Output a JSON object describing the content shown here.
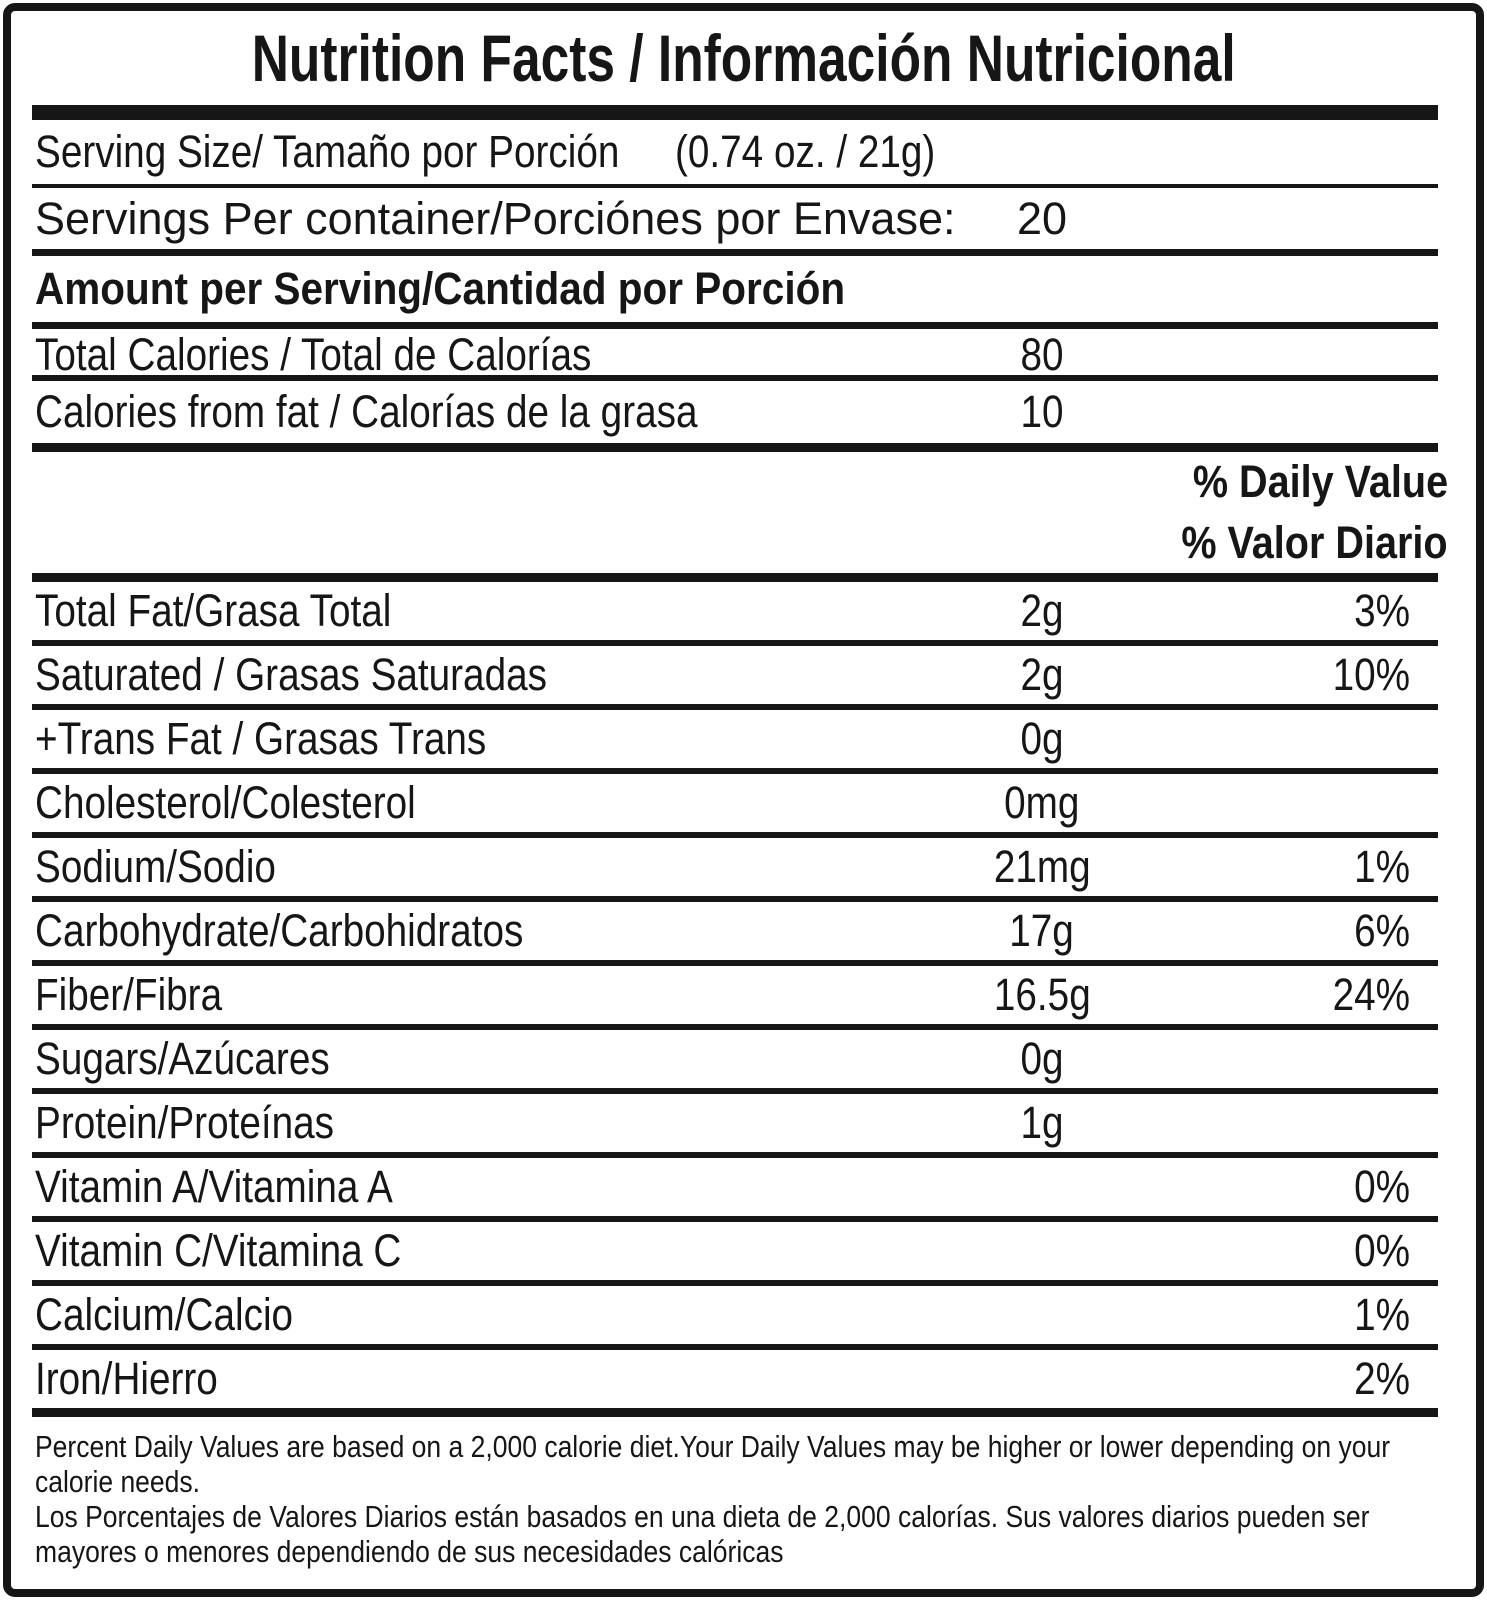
{
  "title": "Nutrition Facts / Información Nutricional",
  "serving_size": {
    "label": "Serving Size/ Tamaño por Porción",
    "value": "(0.74 oz. / 21g)"
  },
  "servings_per_container": {
    "label": "Servings Per container/Porciónes por Envase:",
    "value": "20"
  },
  "amount_per_serving_header": "Amount per Serving/Cantidad por Porción",
  "calorie_rows": [
    {
      "label": "Total Calories / Total de Calorías",
      "value": "80"
    },
    {
      "label": "Calories from fat / Calorías de la grasa",
      "value": "10"
    }
  ],
  "daily_value_headers": {
    "en": "% Daily Value",
    "es": "% Valor Diario"
  },
  "nutrients": [
    {
      "label": "Total Fat/Grasa Total",
      "amount": "2g",
      "daily_value": "3%"
    },
    {
      "label": "Saturated / Grasas Saturadas",
      "amount": "2g",
      "daily_value": "10%"
    },
    {
      "label": "+Trans Fat / Grasas Trans",
      "amount": "0g",
      "daily_value": ""
    },
    {
      "label": "Cholesterol/Colesterol",
      "amount": "0mg",
      "daily_value": ""
    },
    {
      "label": "Sodium/Sodio",
      "amount": "21mg",
      "daily_value": "1%"
    },
    {
      "label": "Carbohydrate/Carbohidratos",
      "amount": "17g",
      "daily_value": "6%"
    },
    {
      "label": "Fiber/Fibra",
      "amount": "16.5g",
      "daily_value": "24%"
    },
    {
      "label": "Sugars/Azúcares",
      "amount": "0g",
      "daily_value": ""
    },
    {
      "label": "Protein/Proteínas",
      "amount": "1g",
      "daily_value": ""
    },
    {
      "label": "Vitamin A/Vitamina A",
      "amount": "",
      "daily_value": "0%"
    },
    {
      "label": "Vitamin C/Vitamina C",
      "amount": "",
      "daily_value": "0%"
    },
    {
      "label": "Calcium/Calcio",
      "amount": "",
      "daily_value": "1%"
    },
    {
      "label": "Iron/Hierro",
      "amount": "",
      "daily_value": "2%"
    }
  ],
  "footnotes": {
    "en": "Percent Daily Values are based on a 2,000 calorie diet.Your Daily Values may be higher or lower depending on your calorie needs.",
    "es": "Los Porcentajes de Valores Diarios están basados en una dieta de 2,000 calorías. Sus valores diarios pueden ser mayores o menores dependiendo de sus necesidades calóricas"
  },
  "colors": {
    "ink": "#161616",
    "background": "#ffffff"
  }
}
